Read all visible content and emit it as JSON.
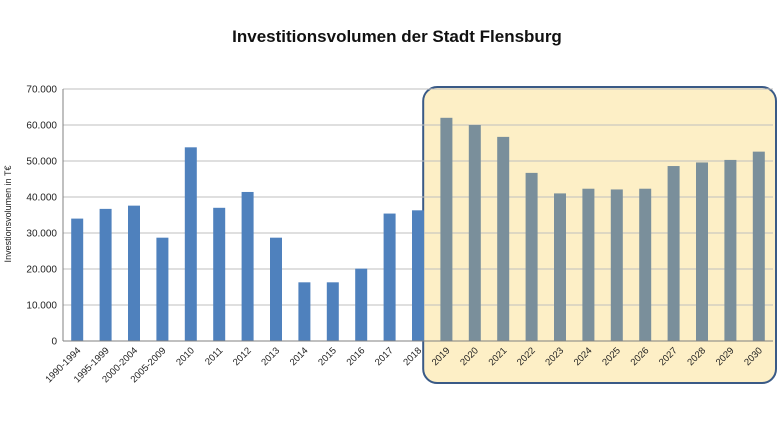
{
  "chart_data": {
    "type": "bar",
    "title": "Investitionsvolumen der Stadt Flensburg",
    "xlabel": "",
    "ylabel": "Investionsvolumen in T€",
    "ylim": [
      0,
      70000
    ],
    "yticks": [
      "0",
      "10.000",
      "20.000",
      "30.000",
      "40.000",
      "50.000",
      "60.000",
      "70.000"
    ],
    "grid": true,
    "legend": "none",
    "categories": [
      "1990-1994",
      "1995-1999",
      "2000-2004",
      "2005-2009",
      "2010",
      "2011",
      "2012",
      "2013",
      "2014",
      "2015",
      "2016",
      "2017",
      "2018",
      "2019",
      "2020",
      "2021",
      "2022",
      "2023",
      "2024",
      "2025",
      "2026",
      "2027",
      "2028",
      "2029",
      "2030"
    ],
    "values": [
      34000,
      36700,
      37600,
      28700,
      53800,
      37000,
      41400,
      28700,
      16300,
      16300,
      20100,
      35400,
      36300,
      62000,
      60000,
      56700,
      46700,
      41000,
      42300,
      42100,
      42300,
      48600,
      49600,
      50300,
      52600
    ],
    "highlight_from_index": 13,
    "colors": {
      "actual": "#4f81bd",
      "forecast": "#7a8f9b",
      "highlight_fill": "#fdefc6",
      "highlight_border": "#3a5a86"
    }
  }
}
